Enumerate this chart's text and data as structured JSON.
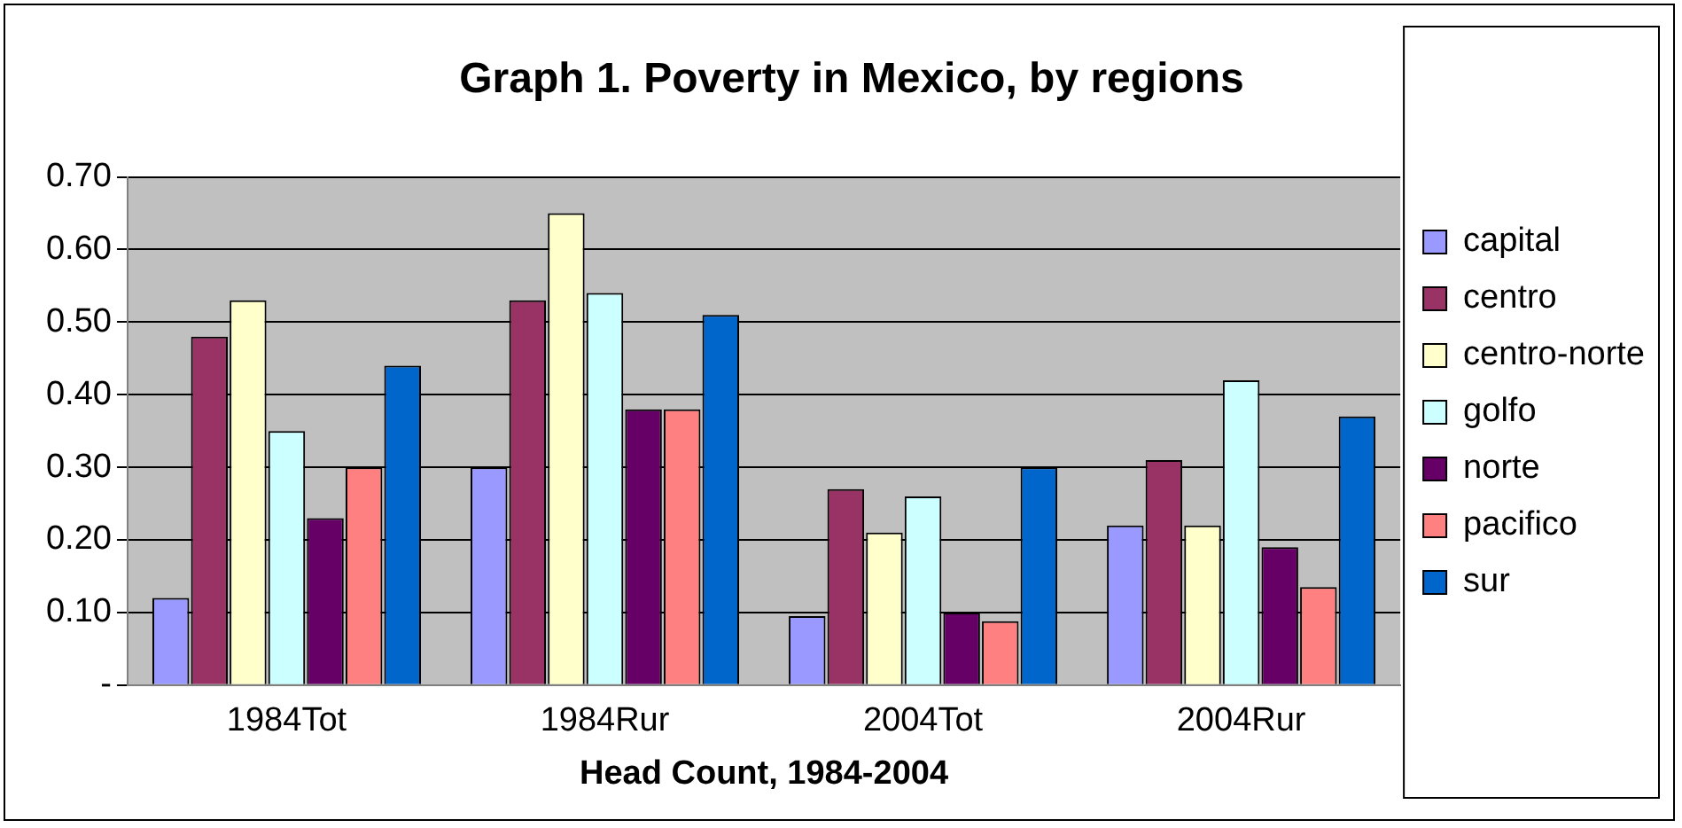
{
  "chart_data": {
    "type": "bar",
    "title": "Graph 1. Poverty in Mexico, by regions",
    "xlabel": "Head Count, 1984-2004",
    "categories": [
      "1984Tot",
      "1984Rur",
      "2004Tot",
      "2004Rur"
    ],
    "series": [
      {
        "name": "capital",
        "color": "#9999ff",
        "values": [
          0.12,
          0.3,
          0.095,
          0.22
        ]
      },
      {
        "name": "centro",
        "color": "#993366",
        "values": [
          0.48,
          0.53,
          0.27,
          0.31
        ]
      },
      {
        "name": "centro-norte",
        "color": "#ffffcc",
        "values": [
          0.53,
          0.65,
          0.21,
          0.22
        ]
      },
      {
        "name": "golfo",
        "color": "#ccffff",
        "values": [
          0.35,
          0.54,
          0.26,
          0.42
        ]
      },
      {
        "name": "norte",
        "color": "#660066",
        "values": [
          0.23,
          0.38,
          0.1,
          0.19
        ]
      },
      {
        "name": "pacifico",
        "color": "#ff8080",
        "values": [
          0.3,
          0.38,
          0.088,
          0.135
        ]
      },
      {
        "name": "sur",
        "color": "#0066cc",
        "values": [
          0.44,
          0.51,
          0.3,
          0.37
        ]
      }
    ],
    "ylim": [
      0,
      0.7
    ],
    "yticks": [
      {
        "value": 0,
        "label": "-"
      },
      {
        "value": 0.1,
        "label": "0.10"
      },
      {
        "value": 0.2,
        "label": "0.20"
      },
      {
        "value": 0.3,
        "label": "0.30"
      },
      {
        "value": 0.4,
        "label": "0.40"
      },
      {
        "value": 0.5,
        "label": "0.50"
      },
      {
        "value": 0.6,
        "label": "0.60"
      },
      {
        "value": 0.7,
        "label": "0.70"
      }
    ],
    "grid": "y",
    "legend": "right"
  }
}
